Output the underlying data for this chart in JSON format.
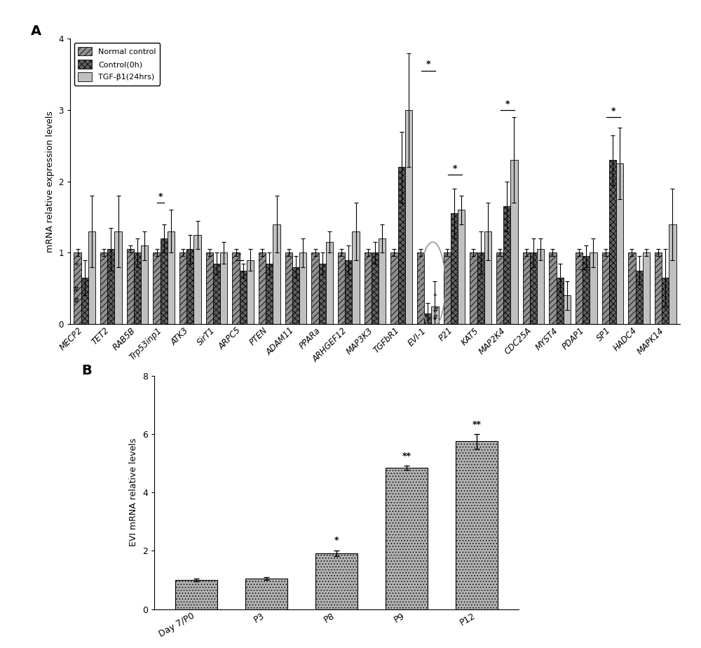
{
  "panel_A": {
    "categories": [
      "MECP2",
      "TET2",
      "RAB5B",
      "Trp53inp1",
      "ATK3",
      "SirT1",
      "ARPC5",
      "PTEN",
      "ADAM11",
      "PPARa",
      "ARHGEF12",
      "MAP3K3",
      "TGFbR1",
      "EVI-1",
      "P21",
      "KAT5",
      "MAP2K4",
      "CDC25A",
      "MYST4",
      "PDAP1",
      "SP1",
      "HADC4",
      "MAPK14"
    ],
    "normal_control": [
      1.0,
      1.0,
      1.05,
      1.0,
      1.0,
      1.0,
      1.0,
      1.0,
      1.0,
      1.0,
      1.0,
      1.0,
      1.0,
      1.0,
      1.0,
      1.0,
      1.0,
      1.0,
      1.0,
      1.0,
      1.0,
      1.0,
      1.0
    ],
    "control_0h": [
      0.65,
      1.05,
      1.0,
      1.2,
      1.05,
      0.85,
      0.75,
      0.85,
      0.8,
      0.85,
      0.9,
      1.0,
      2.2,
      0.15,
      1.55,
      1.0,
      1.65,
      1.0,
      0.65,
      0.95,
      2.3,
      0.75,
      0.65
    ],
    "tgf_b1": [
      1.3,
      1.3,
      1.1,
      1.3,
      1.25,
      1.0,
      0.9,
      1.4,
      1.0,
      1.15,
      1.3,
      1.2,
      3.0,
      0.25,
      1.6,
      1.3,
      2.3,
      1.05,
      0.4,
      1.0,
      2.25,
      1.0,
      1.4
    ],
    "normal_err": [
      0.05,
      0.05,
      0.05,
      0.05,
      0.05,
      0.05,
      0.05,
      0.05,
      0.05,
      0.05,
      0.05,
      0.05,
      0.05,
      0.05,
      0.05,
      0.05,
      0.05,
      0.05,
      0.05,
      0.05,
      0.05,
      0.05,
      0.05
    ],
    "ctrl_err": [
      0.25,
      0.3,
      0.2,
      0.2,
      0.2,
      0.15,
      0.1,
      0.15,
      0.15,
      0.15,
      0.2,
      0.15,
      0.5,
      0.15,
      0.35,
      0.3,
      0.35,
      0.2,
      0.2,
      0.15,
      0.35,
      0.2,
      0.4
    ],
    "tgf_err": [
      0.5,
      0.5,
      0.2,
      0.3,
      0.2,
      0.15,
      0.15,
      0.4,
      0.2,
      0.15,
      0.4,
      0.2,
      0.8,
      0.35,
      0.2,
      0.4,
      0.6,
      0.15,
      0.2,
      0.2,
      0.5,
      0.05,
      0.5
    ],
    "ylabel": "mRNA relative expression levels",
    "ylim": [
      0,
      4
    ],
    "yticks": [
      0,
      1,
      2,
      3,
      4
    ]
  },
  "panel_B": {
    "categories": [
      "Day 7/P0",
      "P3",
      "P8",
      "P9",
      "P12"
    ],
    "values": [
      1.0,
      1.05,
      1.92,
      4.85,
      5.75
    ],
    "errors": [
      0.05,
      0.05,
      0.1,
      0.07,
      0.25
    ],
    "sig_labels": [
      "",
      "",
      "*",
      "**",
      "**"
    ],
    "ylabel": "EVI mRNA relative levels",
    "ylim": [
      0,
      8
    ],
    "yticks": [
      0,
      2,
      4,
      6,
      8
    ]
  },
  "bg_color": "#ffffff",
  "label_A": "A",
  "label_B": "B"
}
